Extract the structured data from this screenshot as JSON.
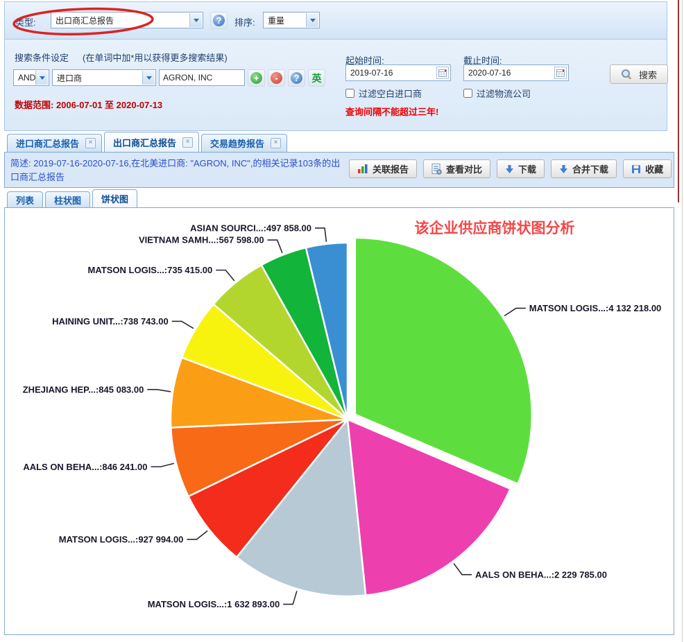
{
  "header": {
    "type_label": "类型:",
    "type_value": "出口商汇总报告",
    "sort_label": "排序:",
    "sort_value": "重量"
  },
  "search": {
    "title": "搜索条件设定",
    "hint": "(在单词中加*用以获得更多搜索结果)",
    "bool_operator": "AND",
    "field_value": "进口商",
    "keyword_value": "AGRON, INC",
    "data_range": "数据范围: 2006-07-01 至 2020-07-13",
    "start_label": "起始时间:",
    "start_value": "2019-07-16",
    "end_label": "截止时间:",
    "end_value": "2020-07-16",
    "filter_blank_importer": "过滤空白进口商",
    "filter_logistics": "过滤物流公司",
    "warning": "查询间隔不能超过三年!",
    "search_button": "搜索"
  },
  "icons": {
    "help": "?",
    "add": "+",
    "remove": "-",
    "english": "英",
    "close": "×"
  },
  "tabs": [
    {
      "label": "进口商汇总报告"
    },
    {
      "label": "出口商汇总报告"
    },
    {
      "label": "交易趋势报告"
    }
  ],
  "summary": {
    "text": "简述: 2019-07-16-2020-07-16,在北美进口商: \"AGRON, INC\",的相关记录103条的出口商汇总报告"
  },
  "toolbar": {
    "related": "关联报告",
    "compare": "查看对比",
    "download": "下载",
    "merge": "合并下载",
    "favorite": "收藏"
  },
  "subtabs": [
    "列表",
    "柱状图",
    "饼状图"
  ],
  "chart_data": {
    "type": "pie",
    "title": "该企业供应商饼状图分析",
    "title_color": "#f54747",
    "label_color": "#17172a",
    "slice_border_color": "#ffffff",
    "legend_position": "labels-outside",
    "slices": [
      {
        "label": "MATSON LOGIS...",
        "value": 4132218.0,
        "display": "MATSON LOGIS...:4 132 218.00",
        "color": "#5ede3e",
        "exploded": true
      },
      {
        "label": "AALS ON BEHA...",
        "value": 2229785.0,
        "display": "AALS ON BEHA...:2 229 785.00",
        "color": "#ee3fae",
        "exploded": false
      },
      {
        "label": "MATSON LOGIS...",
        "value": 1632893.0,
        "display": "MATSON LOGIS...:1 632 893.00",
        "color": "#b7c9d4",
        "exploded": false
      },
      {
        "label": "MATSON LOGIS...",
        "value": 927994.0,
        "display": "MATSON LOGIS...:927 994.00",
        "color": "#f42c1c",
        "exploded": false
      },
      {
        "label": "AALS ON BEHA...",
        "value": 846241.0,
        "display": "AALS ON BEHA...:846 241.00",
        "color": "#f96a16",
        "exploded": false
      },
      {
        "label": "ZHEJIANG HEP...",
        "value": 845083.0,
        "display": "ZHEJIANG HEP...:845 083.00",
        "color": "#fb9e15",
        "exploded": false
      },
      {
        "label": "HAINING UNIT...",
        "value": 738743.0,
        "display": "HAINING UNIT...:738 743.00",
        "color": "#f7f30f",
        "exploded": false
      },
      {
        "label": "MATSON LOGIS...",
        "value": 735415.0,
        "display": "MATSON LOGIS...:735 415.00",
        "color": "#b3d62e",
        "exploded": false
      },
      {
        "label": "VIETNAM SAMH...",
        "value": 567598.0,
        "display": "VIETNAM SAMH...:567 598.00",
        "color": "#12b43a",
        "exploded": false
      },
      {
        "label": "ASIAN SOURCI...",
        "value": 497858.0,
        "display": "ASIAN SOURCI...:497 858.00",
        "color": "#3a8fd2",
        "exploded": false
      }
    ]
  }
}
